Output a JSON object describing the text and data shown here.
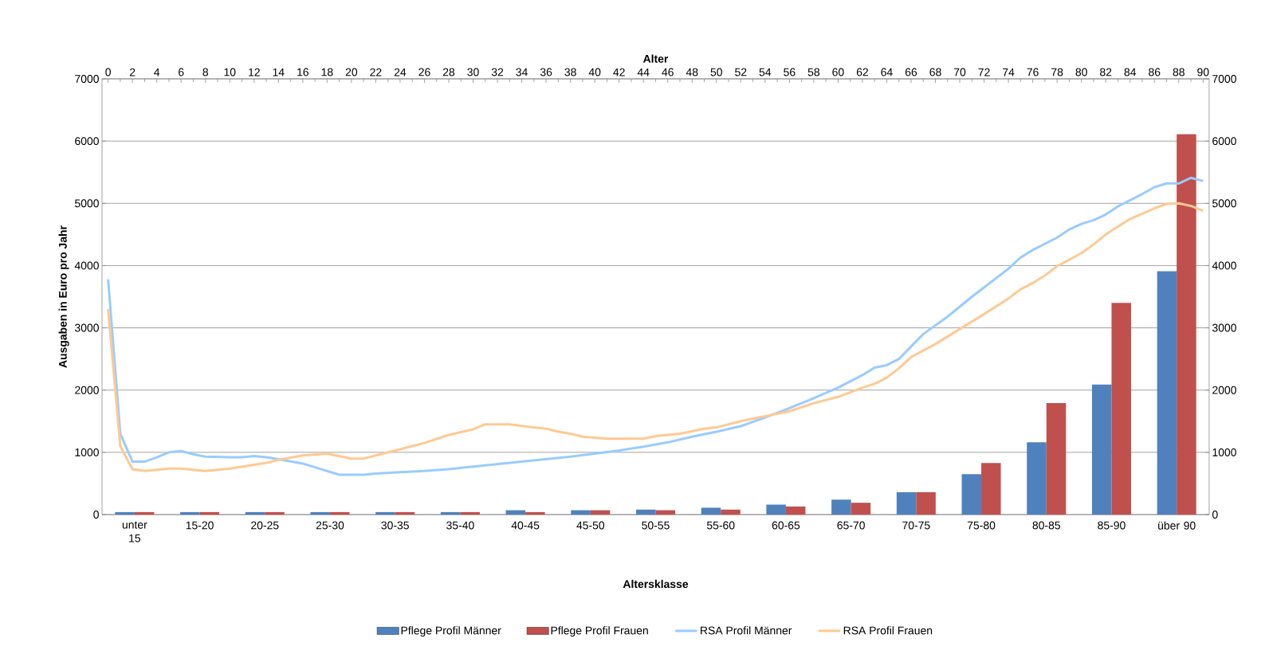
{
  "chart_data": {
    "type": "bar",
    "xlabel": "Altersklasse",
    "x2label": "Alter",
    "ylabel": "Ausgaben in Euro pro Jahr",
    "categories": [
      "unter 15",
      "15-20",
      "20-25",
      "25-30",
      "30-35",
      "35-40",
      "40-45",
      "45-50",
      "50-55",
      "55-60",
      "60-65",
      "65-70",
      "70-75",
      "75-80",
      "80-85",
      "85-90",
      "über 90"
    ],
    "series": [
      {
        "name": "Pflege Profil Männer",
        "color": "#4f81bd",
        "values": [
          40,
          40,
          40,
          40,
          40,
          40,
          70,
          70,
          80,
          110,
          160,
          240,
          360,
          650,
          1160,
          2090,
          3910
        ]
      },
      {
        "name": "Pflege Profil Frauen",
        "color": "#c0504d",
        "values": [
          40,
          40,
          40,
          40,
          40,
          40,
          40,
          70,
          70,
          80,
          130,
          190,
          360,
          830,
          1790,
          3400,
          6110
        ]
      },
      {
        "name": "RSA Profil Männer",
        "type": "line",
        "axis": "x2",
        "color": "#99ccff",
        "x": [
          0,
          1,
          2,
          3,
          4,
          5,
          6,
          7,
          8,
          10,
          11,
          12,
          13,
          14,
          16,
          17,
          19,
          20,
          21,
          22,
          24,
          26,
          28,
          30,
          34,
          38,
          40,
          42,
          44,
          46,
          48,
          50,
          52,
          54,
          56,
          58,
          60,
          62,
          63,
          64,
          65,
          66,
          67,
          69,
          71,
          72,
          73,
          74,
          75,
          76,
          78,
          79,
          80,
          81,
          82,
          83,
          85,
          86,
          87,
          88,
          89,
          90
        ],
        "values": [
          3780,
          1300,
          850,
          850,
          920,
          1000,
          1020,
          970,
          930,
          920,
          920,
          940,
          920,
          890,
          820,
          760,
          640,
          640,
          640,
          660,
          680,
          700,
          730,
          770,
          850,
          930,
          980,
          1030,
          1090,
          1160,
          1250,
          1330,
          1420,
          1560,
          1710,
          1870,
          2040,
          2240,
          2360,
          2400,
          2500,
          2700,
          2900,
          3180,
          3500,
          3650,
          3800,
          3950,
          4130,
          4250,
          4450,
          4580,
          4670,
          4730,
          4820,
          4950,
          5150,
          5260,
          5320,
          5320,
          5410,
          5360
        ]
      },
      {
        "name": "RSA Profil Frauen",
        "type": "line",
        "axis": "x2",
        "color": "#ffc992",
        "x": [
          0,
          1,
          2,
          3,
          4,
          5,
          6,
          8,
          10,
          12,
          13,
          14,
          16,
          18,
          20,
          21,
          22,
          24,
          26,
          28,
          30,
          31,
          32,
          33,
          35,
          36,
          37,
          38,
          39,
          41,
          44,
          45,
          47,
          49,
          50,
          52,
          54,
          56,
          58,
          60,
          62,
          63,
          64,
          65,
          66,
          68,
          70,
          72,
          74,
          75,
          76,
          77,
          78,
          80,
          81,
          82,
          84,
          86,
          87,
          88,
          89,
          90
        ],
        "values": [
          3300,
          1100,
          730,
          700,
          720,
          740,
          740,
          700,
          740,
          800,
          830,
          880,
          950,
          980,
          900,
          900,
          950,
          1050,
          1150,
          1280,
          1370,
          1450,
          1450,
          1450,
          1400,
          1380,
          1330,
          1300,
          1250,
          1220,
          1220,
          1260,
          1300,
          1380,
          1400,
          1500,
          1580,
          1660,
          1790,
          1890,
          2040,
          2100,
          2200,
          2350,
          2530,
          2740,
          2980,
          3220,
          3470,
          3620,
          3720,
          3840,
          3990,
          4200,
          4340,
          4500,
          4750,
          4920,
          4990,
          5000,
          4960,
          4880
        ]
      }
    ],
    "ylim": [
      0,
      7000
    ],
    "yticks": [
      0,
      1000,
      2000,
      3000,
      4000,
      5000,
      6000,
      7000
    ],
    "y2lim": [
      0,
      7000
    ],
    "y2ticks": [
      0,
      1000,
      2000,
      3000,
      4000,
      5000,
      6000,
      7000
    ],
    "x2lim": [
      -0.5,
      90.5
    ],
    "x2ticks": [
      0,
      2,
      4,
      6,
      8,
      10,
      12,
      14,
      16,
      18,
      20,
      22,
      24,
      26,
      28,
      30,
      32,
      34,
      36,
      38,
      40,
      42,
      44,
      46,
      48,
      50,
      52,
      54,
      56,
      58,
      60,
      62,
      64,
      66,
      68,
      70,
      72,
      74,
      76,
      78,
      80,
      82,
      84,
      86,
      88,
      90
    ],
    "grid": "y",
    "legend": "bottom",
    "line_style": "solid"
  }
}
